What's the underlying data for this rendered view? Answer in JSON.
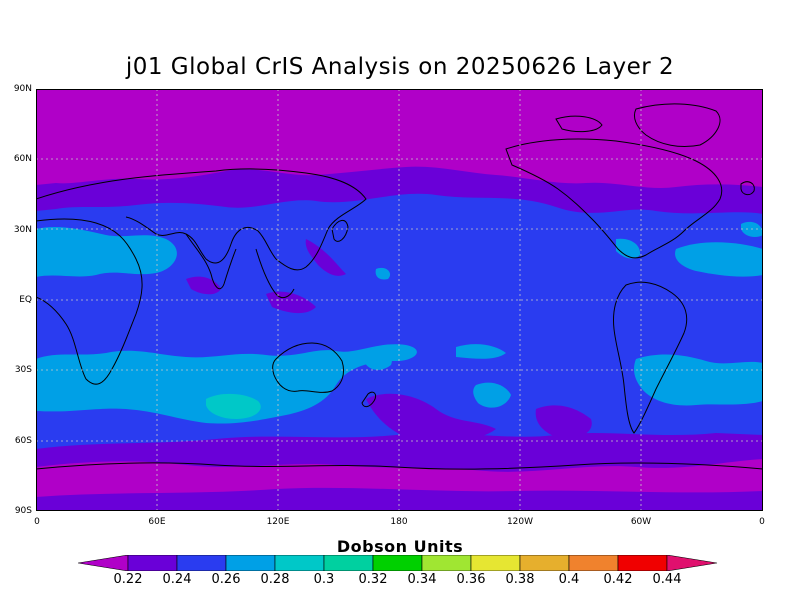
{
  "title": "j01 Global CrIS Analysis on 20250626 Layer 2",
  "axes": {
    "y_ticks": [
      "90N",
      "60N",
      "30N",
      "EQ",
      "30S",
      "60S",
      "90S"
    ],
    "x_ticks": [
      "0",
      "60E",
      "120E",
      "180",
      "120W",
      "60W",
      "0"
    ]
  },
  "colorbar": {
    "title": "Dobson Units",
    "labels": [
      "0.22",
      "0.24",
      "0.26",
      "0.28",
      "0.3",
      "0.32",
      "0.34",
      "0.36",
      "0.38",
      "0.4",
      "0.42",
      "0.44"
    ],
    "colors": [
      "#b000c8",
      "#6a00d8",
      "#2a3cf0",
      "#00a0e6",
      "#00c8c8",
      "#00d0a0",
      "#00d000",
      "#a0e632",
      "#e6e632",
      "#e6af2d",
      "#f0822d",
      "#f00000",
      "#e0106e"
    ]
  },
  "chart_data": {
    "type": "heatmap",
    "title": "j01 Global CrIS Analysis on 20250626 Layer 2",
    "xlabel": "",
    "ylabel": "",
    "units": "Dobson Units",
    "lon_range": [
      0,
      360
    ],
    "lat_range": [
      -90,
      90
    ],
    "value_range": [
      0.22,
      0.44
    ],
    "dominant_levels": {
      "high_latitudes": "0.22-0.24",
      "mid_latitudes": "0.24-0.26",
      "subtropics": "0.26-0.28",
      "max_patch_south_indian_ocean": "0.28-0.30"
    }
  },
  "colors": {
    "ocean_base": "#2a3cf0",
    "polar": "#b000c8",
    "sub_polar": "#6a00d8",
    "subtropic": "#00a0e6",
    "max": "#00c8c8",
    "coast": "#000000"
  }
}
